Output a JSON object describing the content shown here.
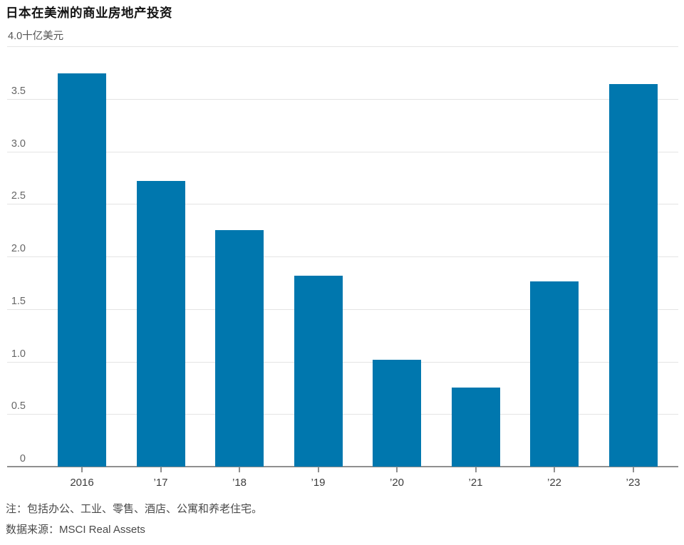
{
  "header": {
    "title": "日本在美洲的商业房地产投资",
    "unit_label": "4.0十亿美元"
  },
  "footer": {
    "note": "注：包括办公、工业、零售、酒店、公寓和养老住宅。",
    "source": "数据来源：MSCI Real Assets"
  },
  "chart_data": {
    "type": "bar",
    "title": "日本在美洲的商业房地产投资",
    "xlabel": "",
    "ylabel": "十亿美元",
    "unit_label": "4.0十亿美元",
    "categories": [
      "2016",
      "’17",
      "’18",
      "’19",
      "’20",
      "’21",
      "’22",
      "’23"
    ],
    "values": [
      3.74,
      2.72,
      2.25,
      1.82,
      1.02,
      0.75,
      1.76,
      3.64
    ],
    "ylim": [
      0,
      4.0
    ],
    "y_ticks": [
      0,
      0.5,
      1.0,
      1.5,
      2.0,
      2.5,
      3.0,
      3.5,
      4.0
    ],
    "y_tick_labels": [
      "0",
      "0.5",
      "1.0",
      "1.5",
      "2.0",
      "2.5",
      "3.0",
      "3.5",
      "4.0"
    ],
    "grid": true,
    "legend": false,
    "note": "注：包括办公、工业、零售、酒店、公寓和养老住宅。",
    "source": "数据来源：MSCI Real Assets"
  },
  "colors": {
    "bar": "#0077ae",
    "gridline": "#e4e4e4",
    "axis": "#8f8f8f",
    "title_text": "#141414",
    "tick_text": "#666666",
    "label_text": "#3d3d3d",
    "note_text": "#4a4a4a"
  }
}
